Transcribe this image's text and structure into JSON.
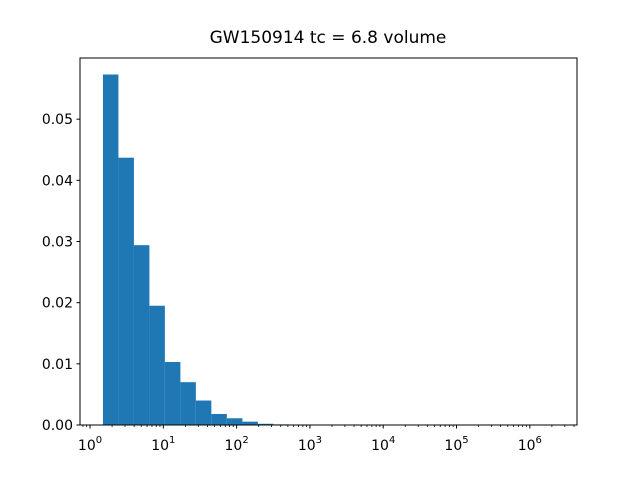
{
  "chart_data": {
    "type": "bar",
    "subtype": "histogram",
    "title": "GW150914 tc = 6.8 volume",
    "xlabel": "",
    "ylabel": "",
    "xscale": "log",
    "yscale": "linear",
    "grid": false,
    "legend_position": "none",
    "xlim": [
      0.73,
      4400000
    ],
    "ylim": [
      0,
      0.06
    ],
    "bar_color": "#1f77b4",
    "axis_color": "#000000",
    "background_color": "#ffffff",
    "bin_edges": [
      1.5,
      2.44,
      3.97,
      6.46,
      10.5,
      17.1,
      27.8,
      45.2,
      73.5,
      120,
      195,
      317,
      515
    ],
    "values": [
      0.0573,
      0.0437,
      0.0294,
      0.0195,
      0.0103,
      0.007,
      0.004,
      0.0018,
      0.0011,
      0.00055,
      0.0002,
      0.0001
    ],
    "x_major_ticks": {
      "base": "10",
      "exponents": [
        0,
        1,
        2,
        3,
        4,
        5,
        6
      ]
    },
    "y_ticks": [
      {
        "value": 0.0,
        "label": "0.00"
      },
      {
        "value": 0.01,
        "label": "0.01"
      },
      {
        "value": 0.02,
        "label": "0.02"
      },
      {
        "value": 0.03,
        "label": "0.03"
      },
      {
        "value": 0.04,
        "label": "0.04"
      },
      {
        "value": 0.05,
        "label": "0.05"
      }
    ]
  }
}
